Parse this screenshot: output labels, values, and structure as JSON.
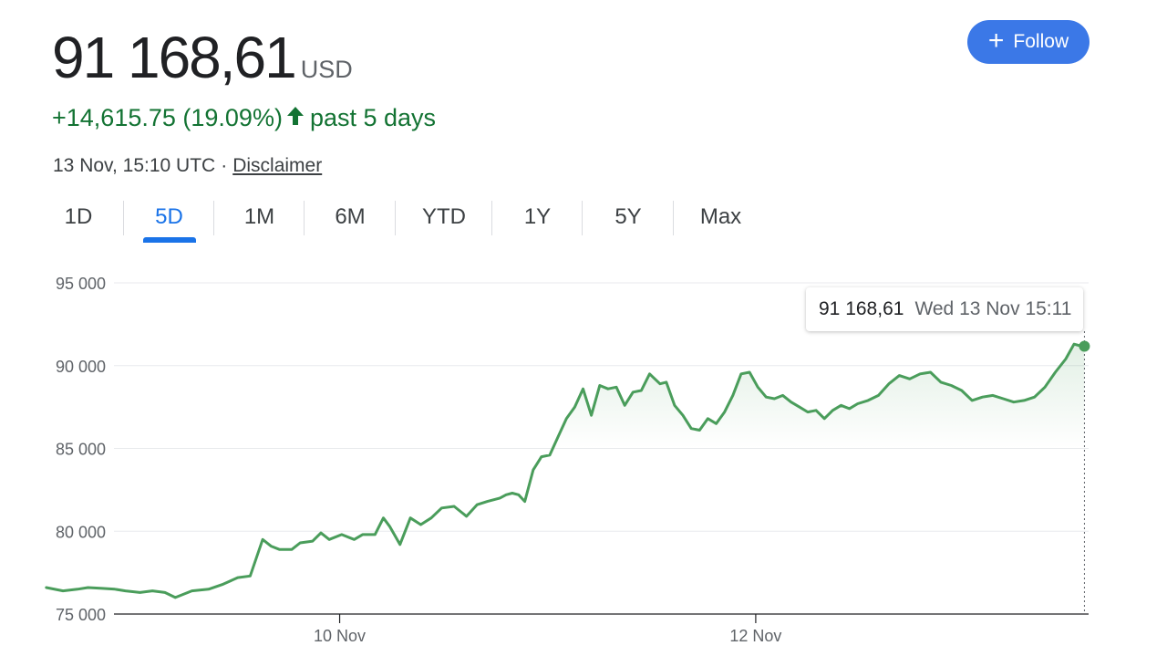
{
  "header": {
    "price": "91 168,61",
    "currency": "USD",
    "change": "+14,615.75 (19.09%)",
    "change_period": "past 5 days",
    "timestamp": "13 Nov, 15:10 UTC",
    "separator": "·",
    "disclaimer": "Disclaimer"
  },
  "follow_button": {
    "icon": "plus-icon",
    "label": "Follow",
    "color": "#3b78e7"
  },
  "tabs": [
    {
      "label": "1D",
      "active": false
    },
    {
      "label": "5D",
      "active": true
    },
    {
      "label": "1M",
      "active": false
    },
    {
      "label": "6M",
      "active": false
    },
    {
      "label": "YTD",
      "active": false
    },
    {
      "label": "1Y",
      "active": false
    },
    {
      "label": "5Y",
      "active": false
    },
    {
      "label": "Max",
      "active": false
    }
  ],
  "tooltip": {
    "value": "91 168,61",
    "time": "Wed 13 Nov 15:11"
  },
  "colors": {
    "line": "#4a9d5b",
    "positive": "#137333",
    "accent": "#1a73e8"
  },
  "chart_data": {
    "type": "area",
    "title": "",
    "xlabel": "",
    "ylabel": "",
    "ylim": [
      75000,
      95000
    ],
    "y_ticks": [
      {
        "value": 95000,
        "label": "95 000"
      },
      {
        "value": 90000,
        "label": "90 000"
      },
      {
        "value": 85000,
        "label": "85 000"
      },
      {
        "value": 80000,
        "label": "80 000"
      },
      {
        "value": 75000,
        "label": "75 000"
      }
    ],
    "x_range": [
      0,
      5.11
    ],
    "x_unit": "days",
    "x_ticks": [
      {
        "value": 1.51,
        "label": "10 Nov"
      },
      {
        "value": 3.51,
        "label": "12 Nov"
      }
    ],
    "grid": true,
    "series": [
      {
        "x": [
          0.1,
          0.18,
          0.25,
          0.3,
          0.37,
          0.43,
          0.48,
          0.55,
          0.61,
          0.67,
          0.72,
          0.8,
          0.88,
          0.95,
          1.02,
          1.08,
          1.14,
          1.18,
          1.22,
          1.28,
          1.32,
          1.38,
          1.42,
          1.46,
          1.52,
          1.58,
          1.62,
          1.68,
          1.72,
          1.75,
          1.8,
          1.85,
          1.9,
          1.95,
          2.0,
          2.06,
          2.12,
          2.17,
          2.22,
          2.28,
          2.31,
          2.34,
          2.37,
          2.4,
          2.44,
          2.48,
          2.52,
          2.56,
          2.6,
          2.64,
          2.68,
          2.72,
          2.76,
          2.8,
          2.84,
          2.88,
          2.92,
          2.96,
          3.0,
          3.05,
          3.08,
          3.12,
          3.16,
          3.2,
          3.24,
          3.28,
          3.32,
          3.36,
          3.4,
          3.44,
          3.48,
          3.52,
          3.56,
          3.6,
          3.64,
          3.68,
          3.72,
          3.76,
          3.8,
          3.84,
          3.88,
          3.92,
          3.96,
          4.0,
          4.05,
          4.1,
          4.15,
          4.2,
          4.25,
          4.3,
          4.35,
          4.4,
          4.45,
          4.5,
          4.55,
          4.6,
          4.65,
          4.7,
          4.75,
          4.8,
          4.85,
          4.9,
          4.95,
          5.0,
          5.04,
          5.07,
          5.09
        ],
        "y": [
          76600,
          76400,
          76500,
          76600,
          76550,
          76500,
          76400,
          76300,
          76400,
          76300,
          76000,
          76400,
          76500,
          76800,
          77200,
          77300,
          79500,
          79100,
          78900,
          78900,
          79300,
          79400,
          79900,
          79500,
          79800,
          79500,
          79800,
          79800,
          80800,
          80300,
          79200,
          80800,
          80400,
          80800,
          81400,
          81500,
          80900,
          81600,
          81800,
          82000,
          82200,
          82300,
          82200,
          81800,
          83700,
          84500,
          84600,
          85700,
          86800,
          87500,
          88600,
          87000,
          88800,
          88600,
          88700,
          87600,
          88400,
          88500,
          89500,
          88900,
          89000,
          87600,
          87000,
          86200,
          86100,
          86800,
          86500,
          87200,
          88200,
          89500,
          89600,
          88700,
          88100,
          88000,
          88200,
          87800,
          87500,
          87200,
          87300,
          86800,
          87300,
          87600,
          87400,
          87700,
          87900,
          88200,
          88900,
          89400,
          89200,
          89500,
          89600,
          89000,
          88800,
          88500,
          87900,
          88100,
          88200,
          88000,
          87800,
          87900,
          88100,
          88700,
          89600,
          90400,
          91300,
          91200,
          91168.61
        ]
      }
    ]
  }
}
